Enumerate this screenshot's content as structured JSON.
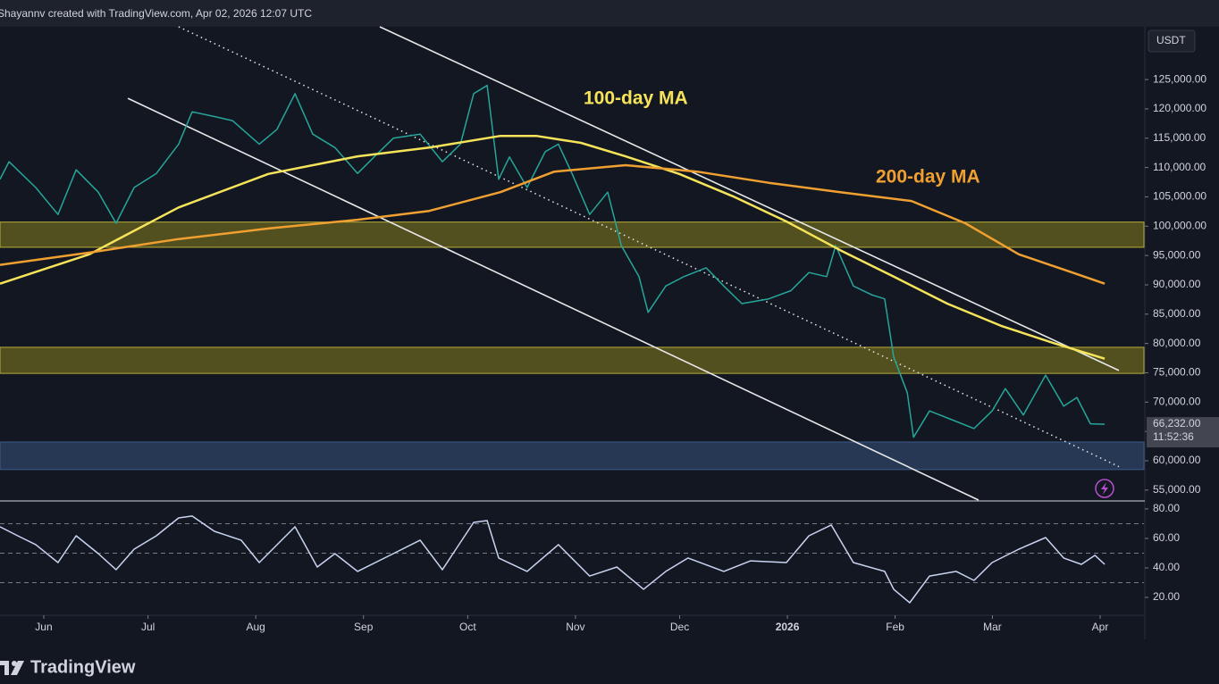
{
  "header": "Shayannv created with TradingView.com, Apr 02, 2026 12:07 UTC",
  "brand": "TradingView",
  "chart_data": [
    {
      "type": "line",
      "currency": "USDT",
      "xlim": [
        -12.6,
        316.6
      ],
      "ylim": [
        53300,
        134000
      ],
      "xticks": [
        {
          "value": 0,
          "label": "Jun"
        },
        {
          "value": 30,
          "label": "Jul"
        },
        {
          "value": 61,
          "label": "Aug"
        },
        {
          "value": 92,
          "label": "Sep"
        },
        {
          "value": 122,
          "label": "Oct"
        },
        {
          "value": 153,
          "label": "Nov"
        },
        {
          "value": 183,
          "label": "Dec"
        },
        {
          "value": 214,
          "label": "2026"
        },
        {
          "value": 245,
          "label": "Feb"
        },
        {
          "value": 273,
          "label": "Mar"
        },
        {
          "value": 304,
          "label": "Apr"
        }
      ],
      "yticks": [
        {
          "value": 55000,
          "label": "55,000.00"
        },
        {
          "value": 60000,
          "label": "60,000.00"
        },
        {
          "value": 65000,
          "label": "65,000.00"
        },
        {
          "value": 70000,
          "label": "70,000.00"
        },
        {
          "value": 75000,
          "label": "75,000.00"
        },
        {
          "value": 80000,
          "label": "80,000.00"
        },
        {
          "value": 85000,
          "label": "85,000.00"
        },
        {
          "value": 90000,
          "label": "90,000.00"
        },
        {
          "value": 95000,
          "label": "95,000.00"
        },
        {
          "value": 100000,
          "label": "100,000.00"
        },
        {
          "value": 105000,
          "label": "105,000.00"
        },
        {
          "value": 110000,
          "label": "110,000.00"
        },
        {
          "value": 115000,
          "label": "115,000.00"
        },
        {
          "value": 120000,
          "label": "120,000.00"
        },
        {
          "value": 125000,
          "label": "125,000.00"
        }
      ],
      "zones": [
        {
          "low": 96400,
          "high": 100700,
          "color": "#5e5a1e"
        },
        {
          "low": 74900,
          "high": 79350,
          "color": "#5e5a1e"
        },
        {
          "low": 58500,
          "high": 63200,
          "color": "#2c3e5e"
        }
      ],
      "trendlines": [
        {
          "x": [
            96.7,
            309.4
          ],
          "y": [
            134000,
            75400
          ],
          "style": "solid"
        },
        {
          "x": [
            24.2,
            269
          ],
          "y": [
            121800,
            53300
          ],
          "style": "solid"
        },
        {
          "x": [
            38.8,
            309.4
          ],
          "y": [
            134000,
            59000
          ],
          "style": "dotted"
        }
      ],
      "last_price": {
        "value": 66232,
        "label": "66,232.00"
      },
      "countdown": "11:52:36",
      "series": [
        {
          "color": "#26a69a",
          "width": 1.5,
          "x": [
            -12.6,
            -10,
            -2.3,
            4.1,
            9.3,
            15.7,
            20.8,
            26,
            32.4,
            38.8,
            42.7,
            49.1,
            54.3,
            62,
            67.1,
            72.3,
            77.4,
            83.8,
            90.3,
            95.4,
            100.6,
            108.3,
            114.7,
            119.9,
            123.7,
            127.6,
            130.9,
            134,
            139.1,
            144.3,
            148.1,
            152,
            157.1,
            162.3,
            166.2,
            171.3,
            173.9,
            179,
            184.2,
            190.6,
            195.7,
            200.9,
            208.6,
            215,
            220.2,
            225.3,
            227.9,
            233,
            238.2,
            242,
            244.6,
            248.5,
            250.3,
            254.9,
            261.3,
            267.7,
            272.9,
            276.7,
            281.9,
            288.3,
            293.5,
            297.3,
            301.2,
            305.3
          ],
          "values": [
            108000,
            111000,
            106600,
            102000,
            109600,
            105800,
            100500,
            106600,
            109000,
            114000,
            119500,
            118700,
            118000,
            114000,
            116500,
            122600,
            115700,
            113400,
            109000,
            112000,
            115000,
            115700,
            111000,
            114000,
            122600,
            124000,
            108000,
            111800,
            106600,
            112700,
            114000,
            109000,
            102000,
            105800,
            96700,
            91400,
            85300,
            89800,
            91400,
            92900,
            89800,
            86800,
            87600,
            89000,
            92100,
            91400,
            96700,
            89800,
            88300,
            87600,
            77700,
            71600,
            64000,
            68500,
            67000,
            65500,
            68500,
            72300,
            67800,
            74600,
            69300,
            70800,
            66300,
            66232
          ]
        },
        {
          "name": "100-day MA",
          "color": "#f5e35a",
          "width": 2.5,
          "x": [
            -12.6,
            13.1,
            38.8,
            64.6,
            90.3,
            110.9,
            131.4,
            141.7,
            154.6,
            167.4,
            182.9,
            198.3,
            213.7,
            229.2,
            244.6,
            260,
            275.5,
            290.9,
            305.3
          ],
          "values": [
            90200,
            95200,
            103200,
            108900,
            111900,
            113400,
            115400,
            115400,
            114200,
            111900,
            108900,
            105100,
            100800,
            95900,
            91400,
            86800,
            83000,
            80000,
            77400
          ]
        },
        {
          "name": "200-day MA",
          "color": "#f0a030",
          "width": 2.5,
          "x": [
            -12.6,
            13.1,
            38.8,
            64.6,
            90.3,
            110.9,
            131.4,
            146.9,
            167.4,
            188,
            208.6,
            229.2,
            249.7,
            265.2,
            280.6,
            296,
            305.3
          ],
          "values": [
            93400,
            95500,
            97800,
            99600,
            101100,
            102600,
            105800,
            109300,
            110400,
            109300,
            107400,
            105800,
            104300,
            100500,
            95200,
            92100,
            90200
          ]
        }
      ]
    },
    {
      "type": "line",
      "xlim": [
        -12.6,
        316.6
      ],
      "ylim": [
        8.5,
        84.8
      ],
      "yticks": [
        {
          "value": 20,
          "label": "20.00"
        },
        {
          "value": 40,
          "label": "40.00"
        },
        {
          "value": 60,
          "label": "60.00"
        },
        {
          "value": 80,
          "label": "80.00"
        }
      ],
      "levels": [
        30,
        50,
        70
      ],
      "series": [
        {
          "color": "#c8d4f0",
          "width": 1.5,
          "x": [
            -12.6,
            -7.5,
            -2.3,
            4.1,
            9.3,
            15.7,
            20.8,
            26,
            32.4,
            38.8,
            42.7,
            49.1,
            56.8,
            62,
            72.3,
            78.7,
            83.8,
            90.3,
            100.6,
            108.3,
            114.7,
            123.7,
            127.6,
            130.9,
            139.1,
            148.1,
            157.1,
            164.9,
            172.6,
            179,
            185.4,
            195.7,
            203.4,
            213.7,
            220.2,
            226.6,
            233,
            242,
            244.6,
            249.2,
            254.9,
            262.6,
            267.7,
            272.9,
            280.6,
            288.3,
            293.5,
            298.6,
            302.5,
            305.3
          ],
          "values": [
            67.9,
            61.8,
            55.8,
            43.6,
            61.8,
            49.7,
            38.8,
            52.7,
            61.8,
            73.9,
            75.2,
            64.8,
            58.8,
            43.6,
            67.9,
            40.6,
            49.7,
            37.6,
            49.7,
            58.8,
            38.8,
            70.9,
            72.1,
            46.7,
            37.6,
            55.8,
            34.5,
            40.6,
            25.5,
            37.6,
            46.7,
            37.6,
            44.8,
            43.6,
            61.8,
            69.1,
            43.6,
            37.6,
            25.5,
            16.4,
            34.5,
            37.6,
            31.5,
            43.6,
            52.7,
            60.6,
            46.7,
            42.4,
            48.5,
            42.4
          ]
        }
      ]
    }
  ]
}
